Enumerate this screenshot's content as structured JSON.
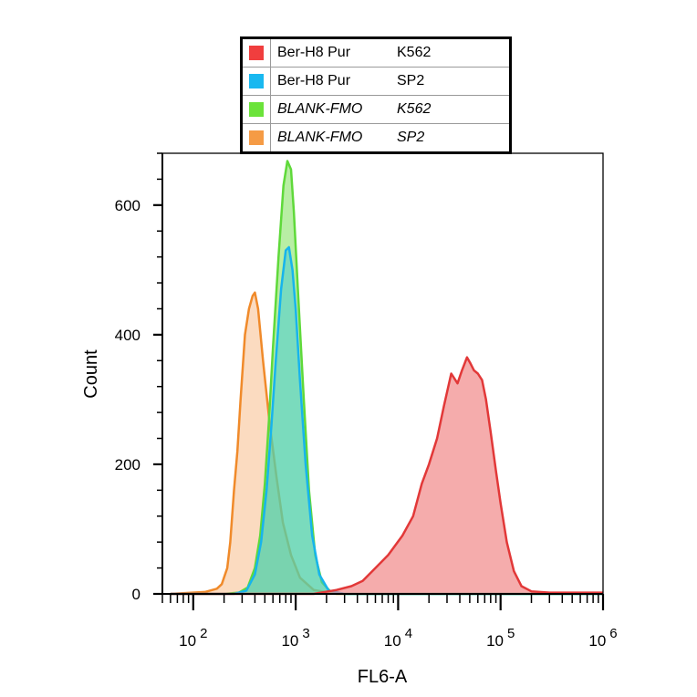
{
  "chart_data": {
    "type": "area",
    "xlabel": "FL6-A",
    "ylabel": "Count",
    "x_scale": "log",
    "xlim": [
      50,
      1000000
    ],
    "ylim": [
      0,
      680
    ],
    "x_ticks": [
      {
        "value": 100,
        "base": "10",
        "exp": "2"
      },
      {
        "value": 1000,
        "base": "10",
        "exp": "3"
      },
      {
        "value": 10000,
        "base": "10",
        "exp": "4"
      },
      {
        "value": 100000,
        "base": "10",
        "exp": "5"
      },
      {
        "value": 1000000,
        "base": "10",
        "exp": "6"
      }
    ],
    "y_ticks": [
      {
        "value": 0,
        "label": "0"
      },
      {
        "value": 200,
        "label": "200"
      },
      {
        "value": 400,
        "label": "400"
      },
      {
        "value": 600,
        "label": "600"
      }
    ],
    "legend": [
      {
        "name": "Ber-H8  Pur",
        "sample": "K562",
        "color": "#f03e3e",
        "italic": false
      },
      {
        "name": "Ber-H8  Pur",
        "sample": "SP2",
        "color": "#19b8f0",
        "italic": false
      },
      {
        "name": "BLANK-FMO",
        "sample": "K562",
        "color": "#6be33a",
        "italic": true
      },
      {
        "name": "BLANK-FMO",
        "sample": "SP2",
        "color": "#f59b45",
        "italic": true
      }
    ],
    "series": [
      {
        "name": "BLANK-FMO SP2",
        "stroke": "#f08a2a",
        "fill": "#f7bd8c",
        "fill_opacity": 0.55,
        "points": [
          [
            60,
            0
          ],
          [
            130,
            3
          ],
          [
            170,
            8
          ],
          [
            190,
            15
          ],
          [
            215,
            40
          ],
          [
            230,
            80
          ],
          [
            250,
            160
          ],
          [
            270,
            220
          ],
          [
            290,
            300
          ],
          [
            320,
            400
          ],
          [
            350,
            440
          ],
          [
            380,
            460
          ],
          [
            400,
            465
          ],
          [
            430,
            440
          ],
          [
            480,
            360
          ],
          [
            560,
            260
          ],
          [
            650,
            180
          ],
          [
            750,
            110
          ],
          [
            900,
            60
          ],
          [
            1100,
            25
          ],
          [
            1500,
            6
          ],
          [
            2500,
            0
          ],
          [
            1000000,
            0
          ]
        ]
      },
      {
        "name": "BLANK-FMO K562",
        "stroke": "#5fd93a",
        "fill": "#7de05a",
        "fill_opacity": 0.55,
        "points": [
          [
            60,
            0
          ],
          [
            200,
            0
          ],
          [
            280,
            2
          ],
          [
            340,
            10
          ],
          [
            400,
            40
          ],
          [
            450,
            90
          ],
          [
            500,
            170
          ],
          [
            550,
            270
          ],
          [
            600,
            380
          ],
          [
            680,
            520
          ],
          [
            760,
            630
          ],
          [
            830,
            668
          ],
          [
            900,
            655
          ],
          [
            960,
            590
          ],
          [
            1050,
            470
          ],
          [
            1200,
            300
          ],
          [
            1350,
            160
          ],
          [
            1550,
            60
          ],
          [
            1800,
            18
          ],
          [
            2200,
            3
          ],
          [
            3000,
            0
          ],
          [
            1000000,
            0
          ]
        ]
      },
      {
        "name": "Ber-H8 Pur SP2",
        "stroke": "#17b4ec",
        "fill": "#3cc8d6",
        "fill_opacity": 0.5,
        "points": [
          [
            60,
            0
          ],
          [
            250,
            0
          ],
          [
            330,
            5
          ],
          [
            400,
            30
          ],
          [
            460,
            80
          ],
          [
            520,
            160
          ],
          [
            580,
            260
          ],
          [
            640,
            360
          ],
          [
            720,
            470
          ],
          [
            800,
            530
          ],
          [
            860,
            535
          ],
          [
            930,
            500
          ],
          [
            1000,
            440
          ],
          [
            1100,
            330
          ],
          [
            1250,
            200
          ],
          [
            1450,
            90
          ],
          [
            1700,
            30
          ],
          [
            2100,
            5
          ],
          [
            3000,
            0
          ],
          [
            1000000,
            0
          ]
        ]
      },
      {
        "name": "Ber-H8 Pur K562",
        "stroke": "#e23838",
        "fill": "#f08080",
        "fill_opacity": 0.65,
        "points": [
          [
            60,
            0
          ],
          [
            1500,
            0
          ],
          [
            2500,
            6
          ],
          [
            3500,
            12
          ],
          [
            4500,
            20
          ],
          [
            6000,
            40
          ],
          [
            8000,
            60
          ],
          [
            11000,
            90
          ],
          [
            14000,
            120
          ],
          [
            17000,
            170
          ],
          [
            20000,
            200
          ],
          [
            24000,
            240
          ],
          [
            28000,
            290
          ],
          [
            33000,
            340
          ],
          [
            38000,
            325
          ],
          [
            42000,
            345
          ],
          [
            47000,
            365
          ],
          [
            51000,
            355
          ],
          [
            55000,
            345
          ],
          [
            60000,
            340
          ],
          [
            66000,
            330
          ],
          [
            72000,
            300
          ],
          [
            80000,
            250
          ],
          [
            90000,
            190
          ],
          [
            100000,
            140
          ],
          [
            115000,
            80
          ],
          [
            135000,
            35
          ],
          [
            160000,
            12
          ],
          [
            200000,
            4
          ],
          [
            300000,
            2
          ],
          [
            1000000,
            2
          ]
        ]
      }
    ]
  }
}
